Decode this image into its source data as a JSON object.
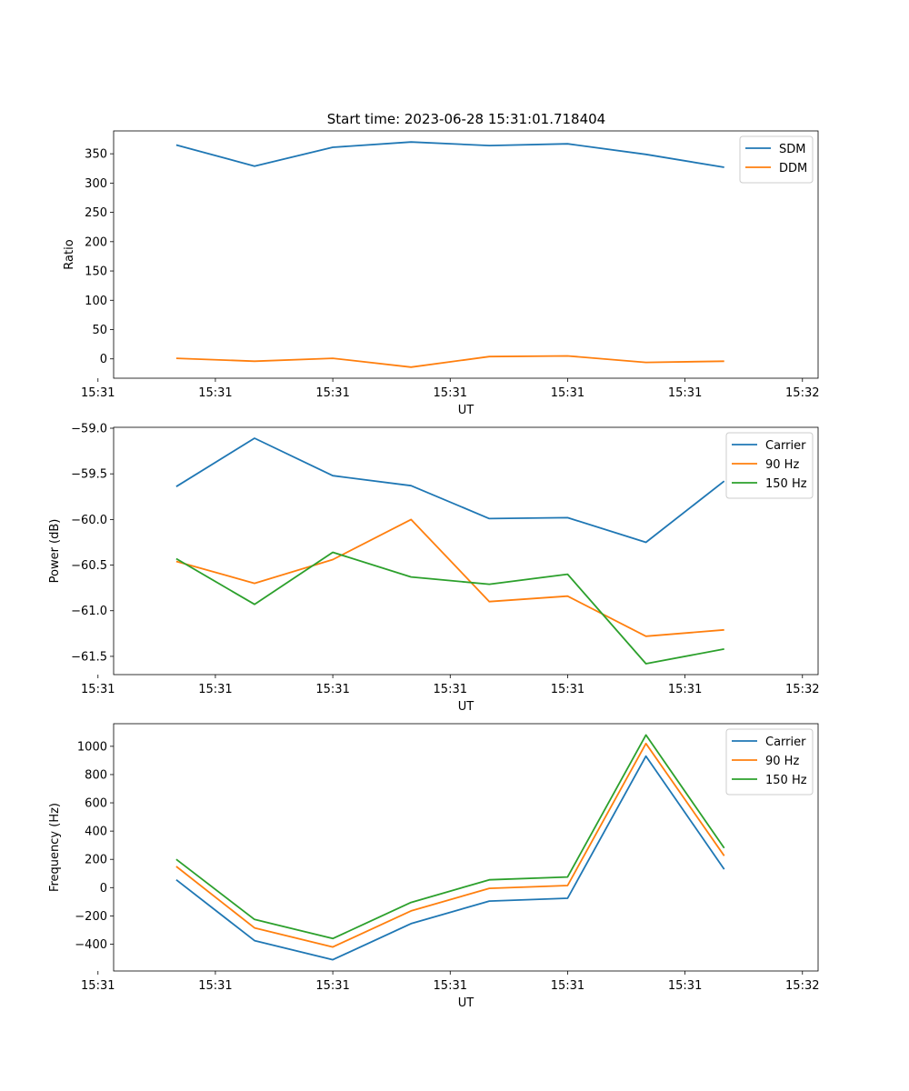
{
  "figure": {
    "title": "Start time: 2023-06-28 15:31:01.718404"
  },
  "chart_data": [
    {
      "type": "line",
      "title": "Start time: 2023-06-28 15:31:01.718404",
      "xlabel": "UT",
      "ylabel": "Ratio",
      "x_tick_labels": [
        "15:31",
        "15:31",
        "15:31",
        "15:31",
        "15:31",
        "15:31",
        "15:32"
      ],
      "x_points": [
        1,
        2,
        3,
        4,
        5,
        6,
        7,
        8
      ],
      "x_domain": [
        0.2,
        9.2
      ],
      "x_tick_positions": [
        0,
        1.5,
        3,
        4.5,
        6,
        7.5,
        9
      ],
      "ylim": [
        -33,
        389
      ],
      "y_ticks": [
        0,
        50,
        100,
        150,
        200,
        250,
        300,
        350
      ],
      "legend_position": "top-right",
      "series": [
        {
          "name": "SDM",
          "color": "#1f77b4",
          "values": [
            365,
            329,
            361,
            370,
            364,
            367,
            349,
            327
          ]
        },
        {
          "name": "DDM",
          "color": "#ff7f0e",
          "values": [
            1,
            -4,
            1,
            -14,
            4,
            5,
            -6,
            -4
          ]
        }
      ]
    },
    {
      "type": "line",
      "xlabel": "UT",
      "ylabel": "Power (dB)",
      "x_tick_labels": [
        "15:31",
        "15:31",
        "15:31",
        "15:31",
        "15:31",
        "15:31",
        "15:32"
      ],
      "x_points": [
        1,
        2,
        3,
        4,
        5,
        6,
        7,
        8
      ],
      "x_domain": [
        0.2,
        9.2
      ],
      "x_tick_positions": [
        0,
        1.5,
        3,
        4.5,
        6,
        7.5,
        9
      ],
      "ylim": [
        -61.7,
        -58.99
      ],
      "y_ticks": [
        -59.0,
        -59.5,
        -60.0,
        -60.5,
        -61.0,
        -61.5
      ],
      "y_tick_labels": [
        "−59.0",
        "−59.5",
        "−60.0",
        "−60.5",
        "−61.0",
        "−61.5"
      ],
      "legend_position": "top-right",
      "series": [
        {
          "name": "Carrier",
          "color": "#1f77b4",
          "values": [
            -59.64,
            -59.11,
            -59.52,
            -59.63,
            -59.99,
            -59.98,
            -60.25,
            -59.58
          ]
        },
        {
          "name": "90 Hz",
          "color": "#ff7f0e",
          "values": [
            -60.46,
            -60.7,
            -60.44,
            -60.0,
            -60.9,
            -60.84,
            -61.28,
            -61.21
          ]
        },
        {
          "name": "150 Hz",
          "color": "#2ca02c",
          "values": [
            -60.43,
            -60.93,
            -60.36,
            -60.63,
            -60.71,
            -60.6,
            -61.58,
            -61.42
          ]
        }
      ]
    },
    {
      "type": "line",
      "xlabel": "UT",
      "ylabel": "Frequency (Hz)",
      "x_tick_labels": [
        "15:31",
        "15:31",
        "15:31",
        "15:31",
        "15:31",
        "15:31",
        "15:32"
      ],
      "x_points": [
        1,
        2,
        3,
        4,
        5,
        6,
        7,
        8
      ],
      "x_domain": [
        0.2,
        9.2
      ],
      "x_tick_positions": [
        0,
        1.5,
        3,
        4.5,
        6,
        7.5,
        9
      ],
      "ylim": [
        -590,
        1160
      ],
      "y_ticks": [
        -400,
        -200,
        0,
        200,
        400,
        600,
        800,
        1000
      ],
      "y_tick_labels": [
        "−400",
        "−200",
        "0",
        "200",
        "400",
        "600",
        "800",
        "1000"
      ],
      "legend_position": "top-right",
      "series": [
        {
          "name": "Carrier",
          "color": "#1f77b4",
          "values": [
            55,
            -375,
            -510,
            -255,
            -95,
            -75,
            930,
            130
          ]
        },
        {
          "name": "90 Hz",
          "color": "#ff7f0e",
          "values": [
            150,
            -285,
            -420,
            -165,
            -5,
            15,
            1020,
            225
          ]
        },
        {
          "name": "150 Hz",
          "color": "#2ca02c",
          "values": [
            200,
            -225,
            -360,
            -105,
            55,
            75,
            1080,
            280
          ]
        }
      ]
    }
  ]
}
